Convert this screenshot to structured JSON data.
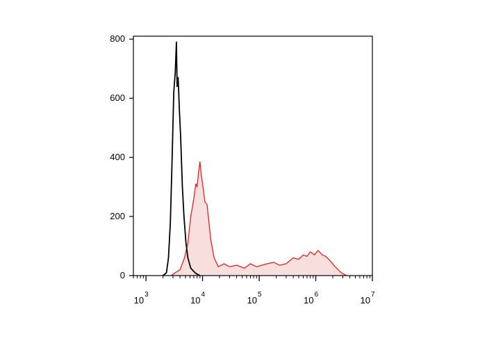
{
  "chart_data": {
    "type": "area",
    "x_scale": "log",
    "xlim": [
      600,
      10000000
    ],
    "ylim": [
      0,
      810
    ],
    "x_ticks": [
      {
        "value": 1000,
        "base": "10",
        "exp": "3"
      },
      {
        "value": 10000,
        "base": "10",
        "exp": "4"
      },
      {
        "value": 100000,
        "base": "10",
        "exp": "5"
      },
      {
        "value": 1000000,
        "base": "10",
        "exp": "6"
      },
      {
        "value": 10000000,
        "base": "10",
        "exp": "7"
      }
    ],
    "y_ticks": [
      {
        "value": 0,
        "label": "0"
      },
      {
        "value": 200,
        "label": "200"
      },
      {
        "value": 400,
        "label": "400"
      },
      {
        "value": 600,
        "label": "600"
      },
      {
        "value": 800,
        "label": "800"
      }
    ],
    "grid": false,
    "legend": "none",
    "series": [
      {
        "color": "#000000",
        "filled": false,
        "points": [
          [
            2000,
            0
          ],
          [
            2300,
            10
          ],
          [
            2500,
            60
          ],
          [
            2700,
            180
          ],
          [
            2900,
            400
          ],
          [
            3100,
            620
          ],
          [
            3300,
            690
          ],
          [
            3450,
            790
          ],
          [
            3550,
            640
          ],
          [
            3700,
            670
          ],
          [
            3900,
            560
          ],
          [
            4100,
            470
          ],
          [
            4400,
            300
          ],
          [
            4700,
            200
          ],
          [
            5100,
            110
          ],
          [
            5500,
            60
          ],
          [
            6200,
            25
          ],
          [
            7500,
            8
          ],
          [
            9000,
            0
          ]
        ]
      },
      {
        "color": "#e02020",
        "fill": "#f9dede",
        "filled": true,
        "points": [
          [
            2800,
            0
          ],
          [
            3300,
            10
          ],
          [
            4000,
            20
          ],
          [
            4800,
            60
          ],
          [
            5500,
            110
          ],
          [
            6200,
            200
          ],
          [
            7000,
            260
          ],
          [
            7600,
            310
          ],
          [
            8000,
            300
          ],
          [
            8500,
            350
          ],
          [
            9000,
            385
          ],
          [
            9500,
            340
          ],
          [
            10000,
            310
          ],
          [
            11000,
            250
          ],
          [
            12000,
            240
          ],
          [
            13000,
            180
          ],
          [
            14000,
            120
          ],
          [
            16000,
            60
          ],
          [
            19000,
            30
          ],
          [
            24000,
            40
          ],
          [
            30000,
            30
          ],
          [
            40000,
            35
          ],
          [
            55000,
            25
          ],
          [
            70000,
            40
          ],
          [
            90000,
            30
          ],
          [
            110000,
            35
          ],
          [
            140000,
            40
          ],
          [
            180000,
            45
          ],
          [
            230000,
            35
          ],
          [
            300000,
            40
          ],
          [
            400000,
            60
          ],
          [
            500000,
            55
          ],
          [
            600000,
            70
          ],
          [
            700000,
            65
          ],
          [
            800000,
            80
          ],
          [
            950000,
            70
          ],
          [
            1100000,
            85
          ],
          [
            1300000,
            70
          ],
          [
            1500000,
            65
          ],
          [
            1800000,
            50
          ],
          [
            2200000,
            30
          ],
          [
            2800000,
            10
          ],
          [
            3500000,
            0
          ]
        ]
      }
    ]
  }
}
